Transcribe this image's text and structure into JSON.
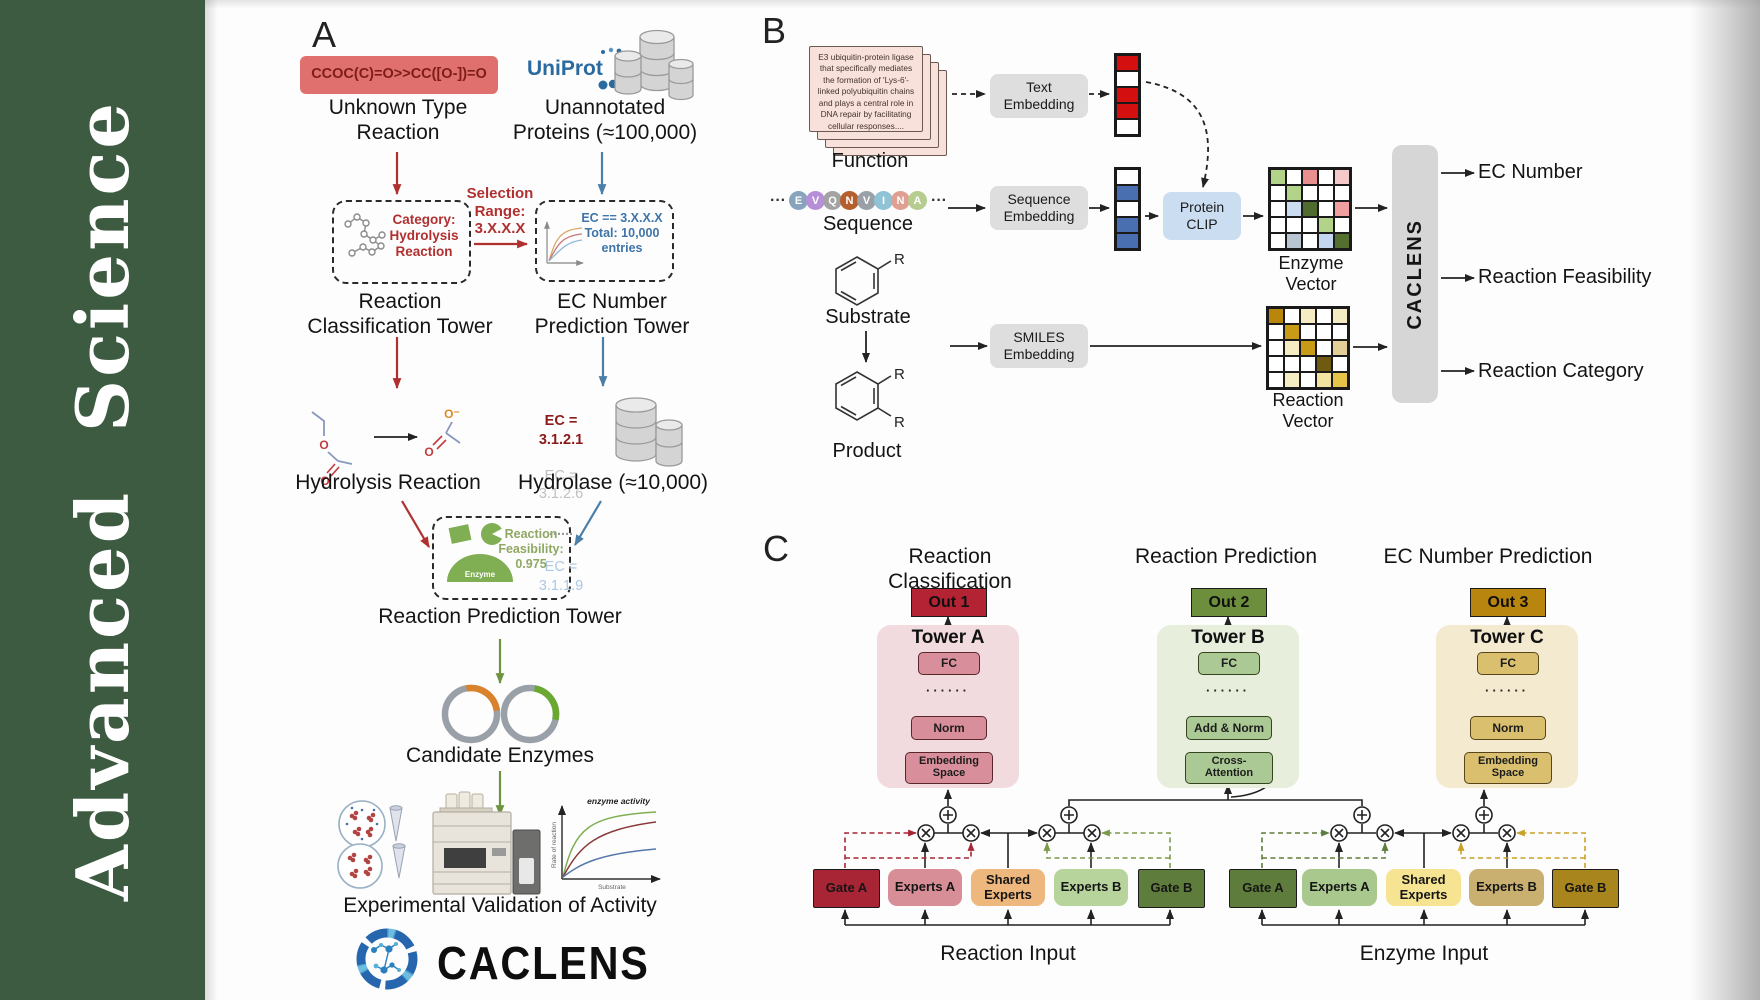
{
  "journal": {
    "name": "Advanced Science",
    "bg": "#3d5b41"
  },
  "panel_a": {
    "label": "A",
    "smiles": "CCOC(C)=O>>CC([O-])=O",
    "smiles_bg": "#e0706d",
    "unknown_type": "Unknown Type\nReaction",
    "uniprot": "UniProt",
    "unannotated": "Unannotated\nProteins (≈100,000)",
    "selection_range": "Selection\nRange:\n3.X.X.X",
    "category_box": "Category:\nHydrolysis\nReaction",
    "ec_select_box": "EC == 3.X.X.X\nTotal: 10,000\nentries",
    "classification_tower": "Reaction\nClassification Tower",
    "ec_tower": "EC Number\nPrediction Tower",
    "hydrolysis_reaction": "Hydrolysis Reaction",
    "ec_list": [
      "EC = 3.1.2.1",
      "EC = 3.1.2.6",
      "......",
      "EC = 3.1.1.9"
    ],
    "hydrolase": "Hydrolase (≈10,000)",
    "enzyme_label": "Enzyme",
    "feasibility": "Reaction\nFeasibility:\n0.975",
    "prediction_tower": "Reaction Prediction Tower",
    "candidate_enzymes": "Candidate Enzymes",
    "activity_plot": {
      "title": "enzyme activity",
      "ylabel": "Rate of reaction",
      "xlabel": "Substrate"
    },
    "validation": "Experimental Validation of Activity",
    "brand": "CACLENS"
  },
  "panel_b": {
    "label": "B",
    "function_card": "E3 ubiquitin-protein ligase that specifically mediates the formation of 'Lys-6'-linked polyubiquitin chains and plays a central role in DNA repair by facilitating cellular responses....",
    "function_label": "Function",
    "ellipsis": "···",
    "sequence": [
      {
        "letter": "E",
        "color": "#88a4bd"
      },
      {
        "letter": "V",
        "color": "#b78fd8"
      },
      {
        "letter": "Q",
        "color": "#a3a3a3"
      },
      {
        "letter": "N",
        "color": "#b55f2e"
      },
      {
        "letter": "V",
        "color": "#9aa0a8"
      },
      {
        "letter": "I",
        "color": "#8fc3d6"
      },
      {
        "letter": "N",
        "color": "#df9f92"
      },
      {
        "letter": "A",
        "color": "#b7cc8f"
      }
    ],
    "sequence_label": "Sequence",
    "substrate_label": "Substrate",
    "product_label": "Product",
    "r": "R",
    "text_embedding": "Text\nEmbedding",
    "sequence_embedding": "Sequence\nEmbedding",
    "smiles_embedding": "SMILES\nEmbedding",
    "embed_box_bg": "#dedede",
    "protein_clip": "Protein\nCLIP",
    "clip_bg": "#cbddf1",
    "text_vector": [
      "#d40f0f",
      "#ffffff",
      "#d40f0f",
      "#d40f0f",
      "#ffffff"
    ],
    "seq_vector": [
      "#ffffff",
      "#4a6fb0",
      "#ffffff",
      "#4a6fb0",
      "#4a6fb0"
    ],
    "enzyme_vector_grid": [
      [
        "#b2d389",
        "#ffffff",
        "#e89090",
        "#ffffff",
        "#f3c9c9"
      ],
      [
        "#ffffff",
        "#b2d389",
        "#ffffff",
        "#ffffff",
        "#ffffff"
      ],
      [
        "#ffffff",
        "#ccdcf0",
        "#4f6b2d",
        "#ffffff",
        "#ef9f9f"
      ],
      [
        "#ffffff",
        "#ffffff",
        "#ffffff",
        "#b2d389",
        "#ffffff"
      ],
      [
        "#ffffff",
        "#b9c6d2",
        "#ffffff",
        "#c3d8f0",
        "#55702e"
      ]
    ],
    "reaction_vector_grid": [
      [
        "#b8860b",
        "#ffffff",
        "#f5ecc4",
        "#ffffff",
        "#f5ecc4"
      ],
      [
        "#ffffff",
        "#c79b17",
        "#ffffff",
        "#ffffff",
        "#ffffff"
      ],
      [
        "#ffffff",
        "#f5ecc4",
        "#c79b17",
        "#ffffff",
        "#e3cf96"
      ],
      [
        "#ffffff",
        "#ffffff",
        "#ffffff",
        "#6e5a10",
        "#ffffff"
      ],
      [
        "#ffffff",
        "#f5ecc4",
        "#ffffff",
        "#f3e3a0",
        "#e6c44a"
      ]
    ],
    "enzyme_vector_label": "Enzyme Vector",
    "reaction_vector_label": "Reaction Vector",
    "caclens": "CACLENS",
    "caclens_bg": "#d6d6d6",
    "outputs": [
      "EC Number",
      "Reaction Feasibility",
      "Reaction Category"
    ]
  },
  "panel_c": {
    "label": "C",
    "columns": [
      {
        "header": "Reaction Classification",
        "out": "Out 1",
        "out_color": "#b42333",
        "tower": "Tower A",
        "panel_bg": "#f2dbde",
        "box_bg": "#d98f9b",
        "box_border": "#59262c",
        "fc": "FC",
        "dots": "······",
        "norm": "Norm",
        "bottom": "Embedding\nSpace"
      },
      {
        "header": "Reaction Prediction",
        "out": "Out 2",
        "out_color": "#6d8f3d",
        "tower": "Tower B",
        "panel_bg": "#e7eedc",
        "box_bg": "#abc994",
        "box_border": "#35431f",
        "fc": "FC",
        "dots": "······",
        "norm": "Add & Norm",
        "bottom": "Cross-\nAttention"
      },
      {
        "header": "EC Number Prediction",
        "out": "Out 3",
        "out_color": "#b8860f",
        "tower": "Tower C",
        "panel_bg": "#f3ead0",
        "box_bg": "#d9bf6e",
        "box_border": "#57461a",
        "fc": "FC",
        "dots": "······",
        "norm": "Norm",
        "bottom": "Embedding\nSpace"
      }
    ],
    "moe": [
      {
        "input": "Reaction Input",
        "boxes": [
          {
            "label": "Gate A",
            "color": "#a72534"
          },
          {
            "label": "Experts A",
            "color": "#d78e96"
          },
          {
            "label": "Shared\nExperts",
            "color": "#edb77e"
          },
          {
            "label": "Experts B",
            "color": "#b6d49b"
          },
          {
            "label": "Gate B",
            "color": "#5e7c3b"
          }
        ]
      },
      {
        "input": "Enzyme Input",
        "boxes": [
          {
            "label": "Gate A",
            "color": "#5e7c3b"
          },
          {
            "label": "Experts A",
            "color": "#a9c88e"
          },
          {
            "label": "Shared\nExperts",
            "color": "#f6e492"
          },
          {
            "label": "Experts B",
            "color": "#c9b071"
          },
          {
            "label": "Gate B",
            "color": "#a9851d"
          }
        ]
      }
    ]
  },
  "colors": {
    "red_flow": "#b03030",
    "blue_flow": "#4a7fa8",
    "green_flow": "#6f9440",
    "gate_red_dash": "#a72534",
    "gate_green_dash": "#7a9a4a",
    "gate_darkgreen_dash": "#5e7c3b",
    "gate_gold_dash": "#c9a227",
    "uniprot_blue": "#2a6a9f"
  },
  "icons": {
    "database": "cylinder-stack",
    "uniprot": "dotted-circle-wordmark",
    "plasmid": "ring-with-arc",
    "enzyme": "green-dome",
    "caclens_logo": "blue-aperture-molecule",
    "hplc": "chromatography-instrument",
    "cells": "microscopy-circles-tubes"
  }
}
